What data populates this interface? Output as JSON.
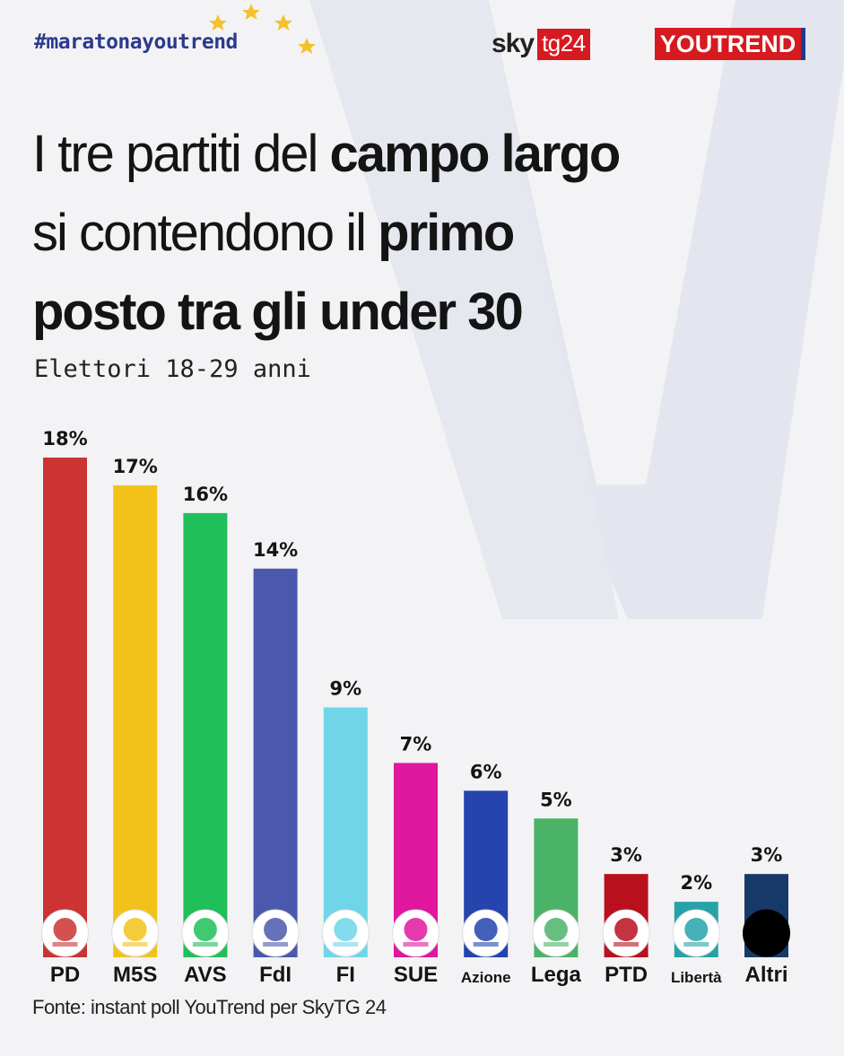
{
  "header": {
    "hashtag": "#maratonayoutrend",
    "logo_sky_text": "sky",
    "logo_tg_text": "tg24",
    "logo_youtrend_text": "YOUTREND"
  },
  "title": {
    "line1_regular": "I tre partiti del ",
    "line1_bold": "campo largo",
    "line2_regular": "si contendono il ",
    "line2_bold": "primo",
    "line3_bold": "posto tra gli under 30"
  },
  "subtitle": "Elettori 18-29 anni",
  "source": "Fonte: instant poll YouTrend per SkyTG 24",
  "chart_data": {
    "type": "bar",
    "title": "I tre partiti del campo largo si contendono il primo posto tra gli under 30",
    "subtitle": "Elettori 18-29 anni",
    "categories": [
      "PD",
      "M5S",
      "AVS",
      "FdI",
      "FI",
      "SUE",
      "Azione",
      "Lega",
      "PTD",
      "Libertà",
      "Altri"
    ],
    "values": [
      18,
      17,
      16,
      14,
      9,
      7,
      6,
      5,
      3,
      2,
      3
    ],
    "value_labels": [
      "18%",
      "17%",
      "16%",
      "14%",
      "9%",
      "7%",
      "6%",
      "5%",
      "3%",
      "2%",
      "3%"
    ],
    "colors": [
      "#cc3333",
      "#f2c21b",
      "#1fbf5a",
      "#4a59ae",
      "#6fd5e8",
      "#e0179f",
      "#2544ad",
      "#4bb368",
      "#b8101d",
      "#26a3a9",
      "#17396a"
    ],
    "icons": [
      "pd-logo-icon",
      "m5s-logo-icon",
      "avs-logo-icon",
      "fdi-logo-icon",
      "fi-logo-icon",
      "sue-logo-icon",
      "azione-logo-icon",
      "lega-logo-icon",
      "ptd-logo-icon",
      "liberta-logo-icon",
      "altri-dot-icon"
    ],
    "ylim": [
      0,
      18
    ],
    "grid": false,
    "legend": "none"
  }
}
